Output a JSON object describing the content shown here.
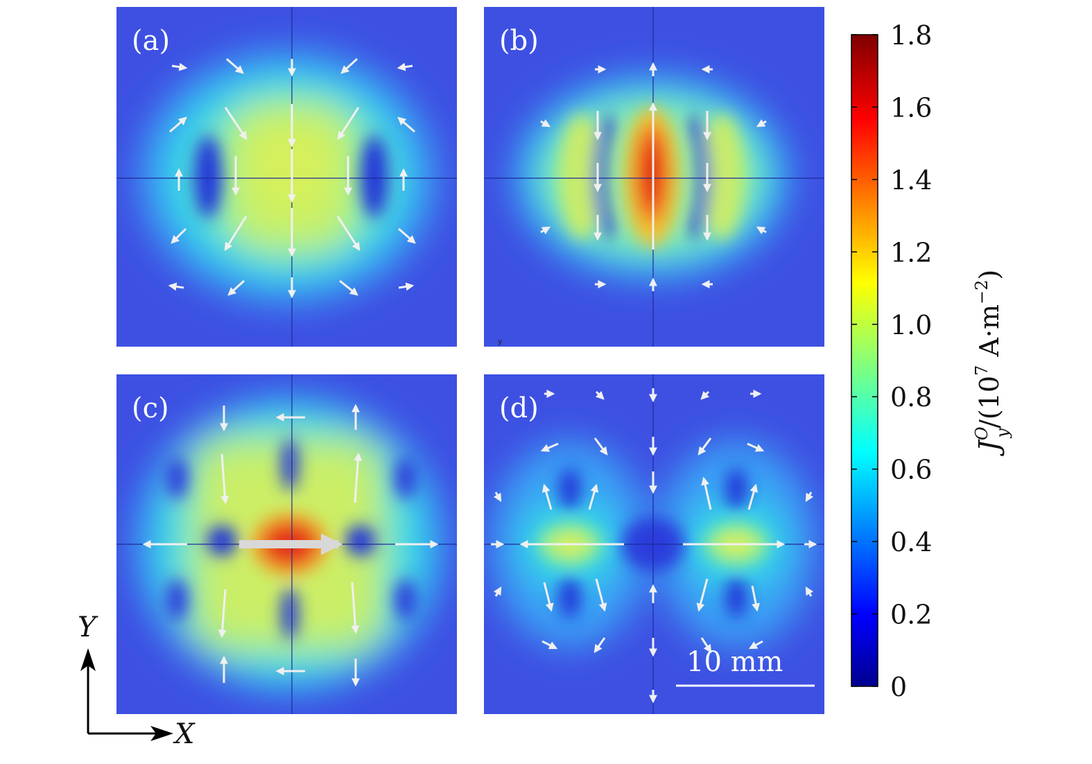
{
  "chart_data": {
    "type": "heatmap",
    "panels": [
      {
        "label": "(a)"
      },
      {
        "label": "(b)"
      },
      {
        "label": "(c)"
      },
      {
        "label": "(d)"
      }
    ],
    "colorbar": {
      "min": 0,
      "max": 1.8,
      "ticks": [
        "0",
        "0.2",
        "0.4",
        "0.6",
        "0.8",
        "1.0",
        "1.2",
        "1.4",
        "1.6",
        "1.8"
      ],
      "label": "J_y^O/(10^7 A·m^-2)",
      "label_main": "J",
      "label_sup": "O",
      "label_sub": "y",
      "label_rest": "/(10",
      "label_exp": "7",
      "label_unit": " A·m",
      "label_unit_exp": "−2",
      "label_close": ")"
    },
    "axes": {
      "x_label": "X",
      "y_label": "Y"
    },
    "scale_bar": {
      "label": "10 mm"
    },
    "panel_b_note": "y"
  },
  "colors": {
    "background_blue": "#3b4fe0",
    "arrow": "#f2f2f2"
  }
}
